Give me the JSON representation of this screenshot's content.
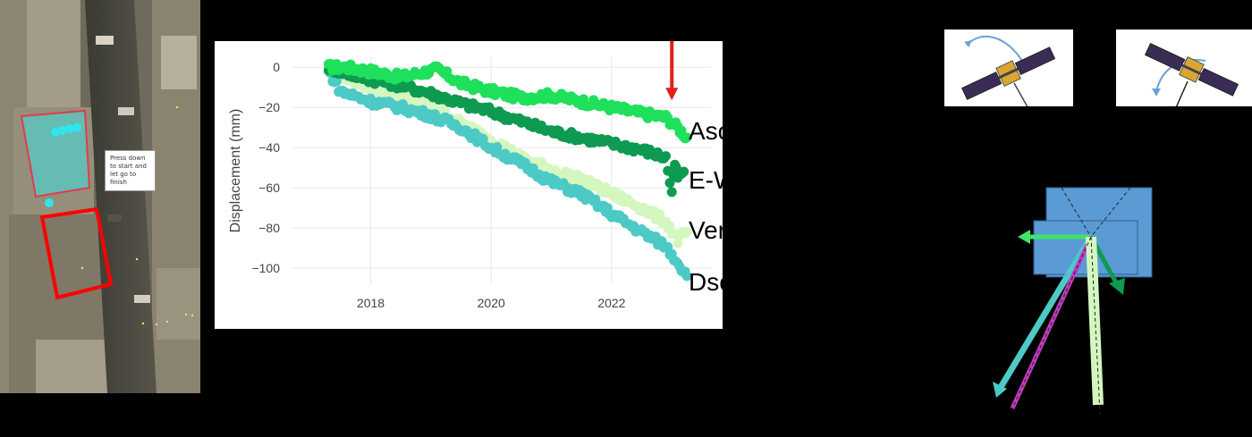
{
  "map": {
    "tooltip_text": "Press down to start and let go to finish"
  },
  "colors": {
    "asc": "#1fe05a",
    "ew": "#0e9a50",
    "vertical": "#d4f7c0",
    "dsc": "#4dc9c6",
    "arrow": "#e0201b",
    "building_blue": "#5b9bd5"
  },
  "chart_data": {
    "type": "scatter",
    "ylabel": "Displacement (mm)",
    "xlabel": "",
    "title": "",
    "xlim": [
      2016.7,
      2023.65
    ],
    "ylim": [
      -108,
      5
    ],
    "xticks": [
      2018,
      2020,
      2022
    ],
    "xtick_labels": [
      "2018",
      "2020",
      "2022"
    ],
    "yticks": [
      0,
      -20,
      -40,
      -60,
      -80,
      -100
    ],
    "ytick_labels": [
      "0",
      "−20",
      "−40",
      "−60",
      "−80",
      "−100"
    ],
    "grid": true,
    "event_marker": {
      "x": 2023.0
    },
    "series": [
      {
        "name": "Asc",
        "color": "#1fe05a",
        "x": [
          2017.3,
          2017.6,
          2018.0,
          2018.5,
          2018.8,
          2019.1,
          2019.5,
          2020.0,
          2020.5,
          2021.0,
          2021.5,
          2022.0,
          2022.5,
          2022.9,
          2023.1,
          2023.25
        ],
        "y": [
          0,
          0,
          -2,
          -5,
          -3,
          -1,
          -8,
          -12,
          -15,
          -14,
          -17,
          -20,
          -23,
          -25,
          -30,
          -35
        ]
      },
      {
        "name": "E-W",
        "color": "#0e9a50",
        "x": [
          2017.3,
          2017.6,
          2018.0,
          2018.5,
          2019.0,
          2019.5,
          2020.0,
          2020.5,
          2021.0,
          2021.5,
          2022.0,
          2022.5,
          2022.9,
          2023.0,
          2023.05,
          2023.1,
          2023.2
        ],
        "y": [
          0,
          -3,
          -6,
          -9,
          -13,
          -18,
          -22,
          -27,
          -32,
          -35,
          -38,
          -41,
          -45,
          -63,
          -48,
          -55,
          -52
        ]
      },
      {
        "name": "Vertical",
        "color": "#d4f7c0",
        "x": [
          2017.3,
          2017.6,
          2018.0,
          2018.5,
          2019.0,
          2019.5,
          2020.0,
          2020.5,
          2021.0,
          2021.5,
          2022.0,
          2022.5,
          2022.9,
          2023.1,
          2023.25
        ],
        "y": [
          -2,
          -5,
          -10,
          -14,
          -19,
          -28,
          -36,
          -45,
          -51,
          -56,
          -63,
          -70,
          -77,
          -86,
          -82
        ]
      },
      {
        "name": "Dsc",
        "color": "#4dc9c6",
        "x": [
          2017.3,
          2017.5,
          2018.0,
          2018.5,
          2019.0,
          2019.5,
          2020.0,
          2020.5,
          2021.0,
          2021.5,
          2022.0,
          2022.5,
          2022.9,
          2023.1,
          2023.25
        ],
        "y": [
          -2,
          -12,
          -17,
          -20,
          -24,
          -30,
          -40,
          -48,
          -57,
          -63,
          -73,
          -82,
          -89,
          -97,
          -104
        ]
      }
    ]
  },
  "labels": {
    "asc": "Asc",
    "ew": "E-W",
    "vertical": "Vertical",
    "dsc": "Dsc"
  }
}
